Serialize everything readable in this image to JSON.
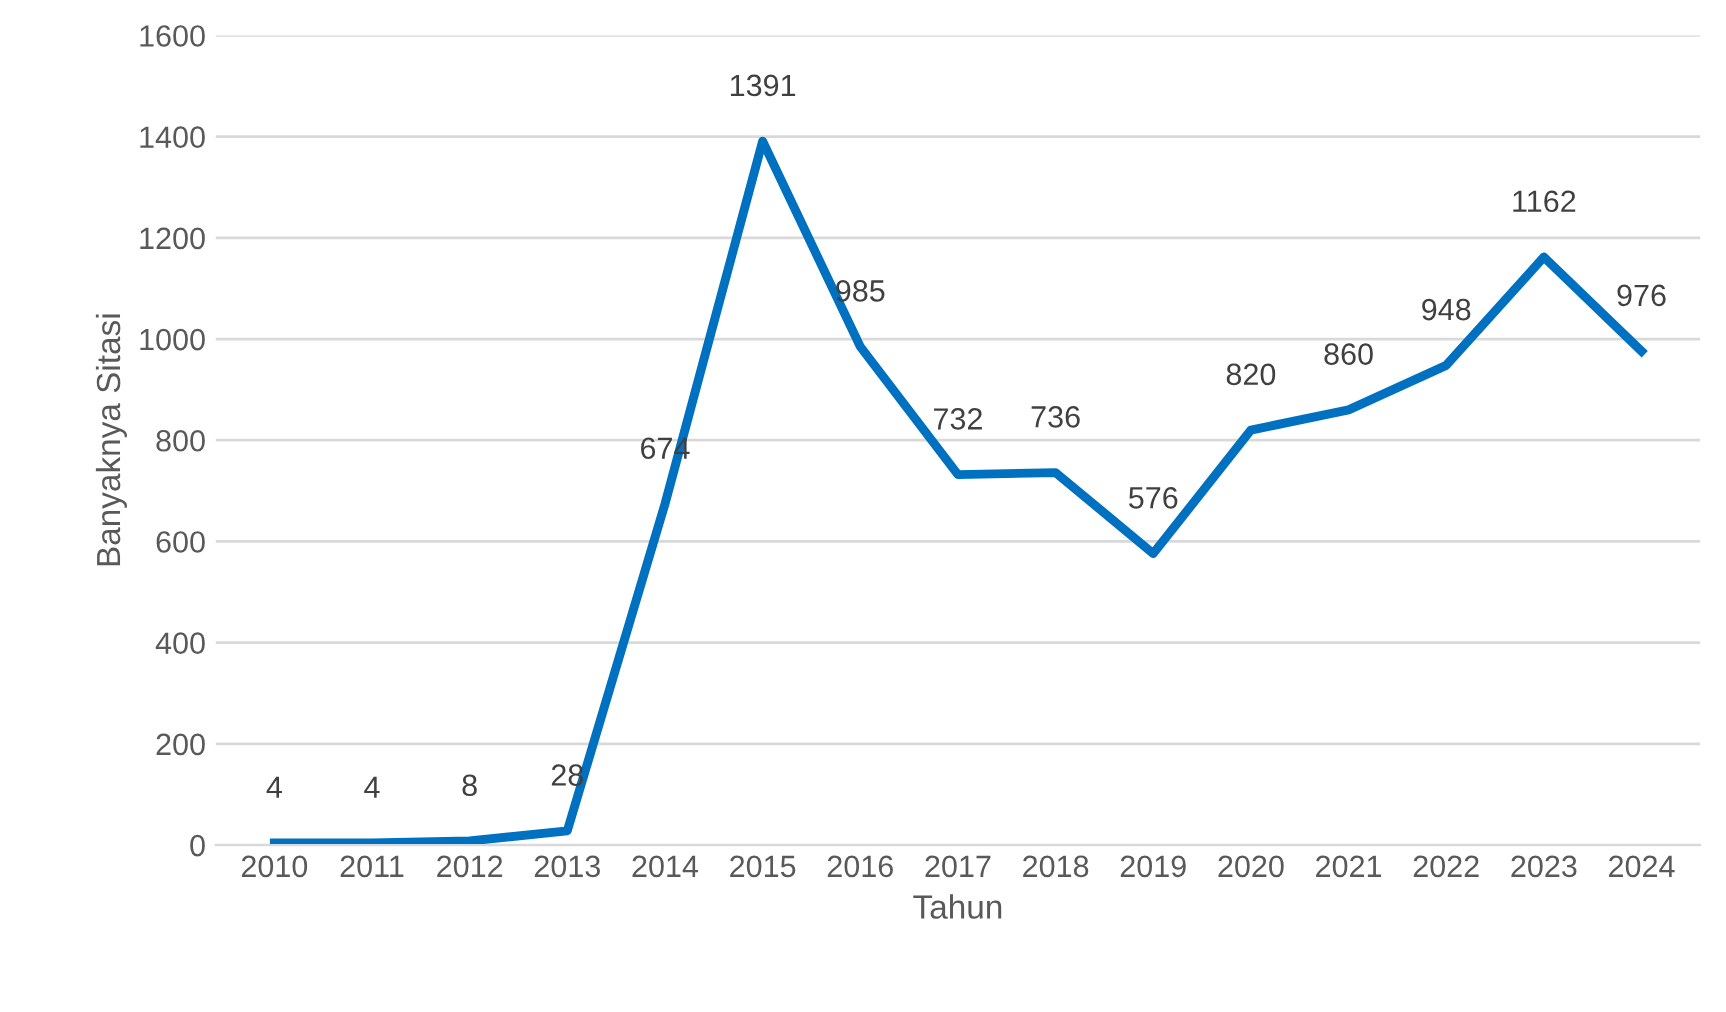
{
  "chart_data": {
    "type": "line",
    "xlabel": "Tahun",
    "ylabel": "Banyaknya Sitasi",
    "categories": [
      "2010",
      "2011",
      "2012",
      "2013",
      "2014",
      "2015",
      "2016",
      "2017",
      "2018",
      "2019",
      "2020",
      "2021",
      "2022",
      "2023",
      "2024"
    ],
    "series": [
      {
        "color": "#0070c0",
        "values": [
          4,
          4,
          8,
          28,
          674,
          1391,
          985,
          732,
          736,
          576,
          820,
          860,
          948,
          1162,
          976
        ]
      }
    ],
    "data_labels": true,
    "ylim": [
      0,
      1600
    ],
    "yticks": [
      0,
      200,
      400,
      600,
      800,
      1000,
      1200,
      1400,
      1600
    ],
    "grid": "y",
    "legend": false,
    "marker": "none",
    "line_style": "solid"
  }
}
